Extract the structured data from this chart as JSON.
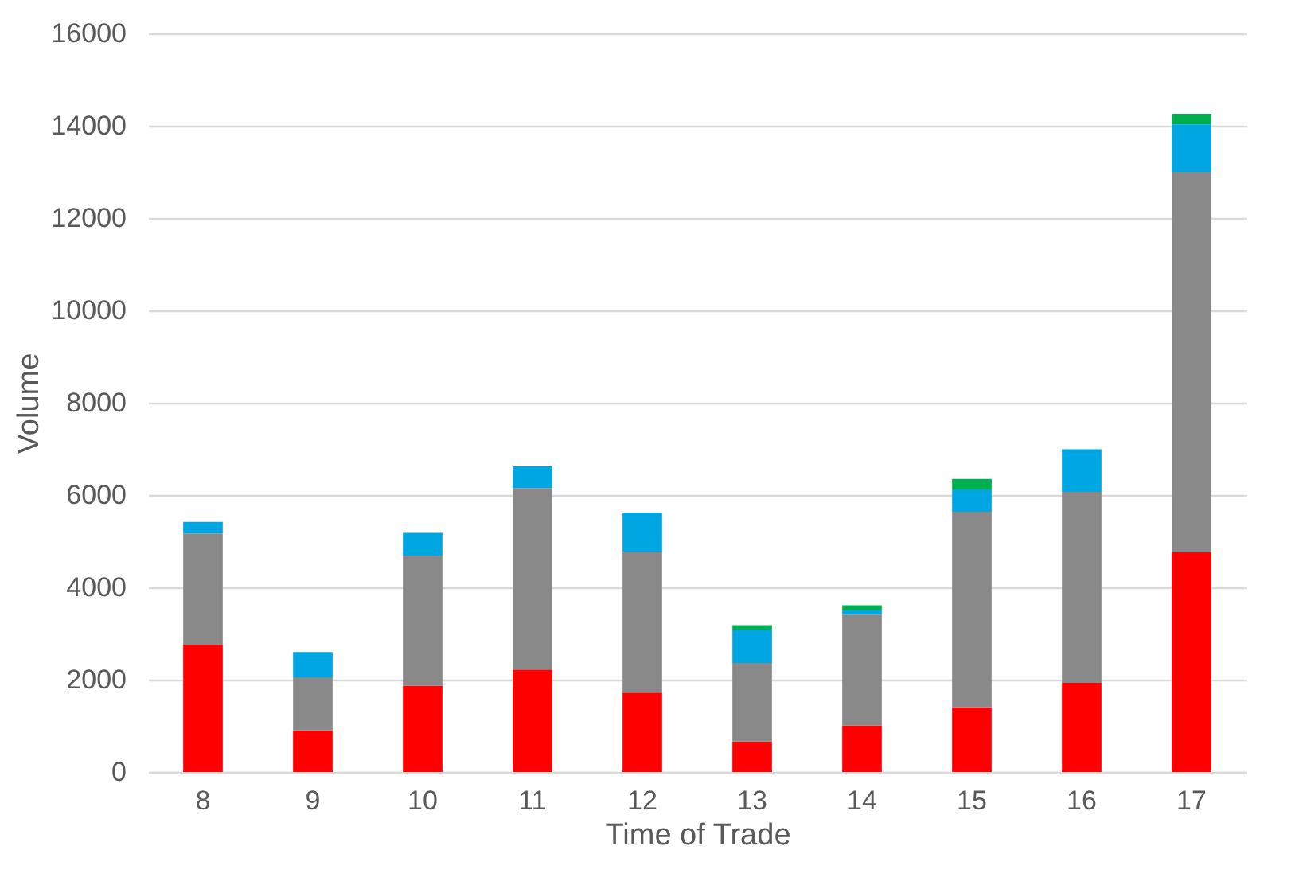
{
  "chart_data": {
    "type": "bar",
    "stacked": true,
    "xlabel": "Time of Trade",
    "ylabel": "Volume",
    "categories": [
      "8",
      "9",
      "10",
      "11",
      "12",
      "13",
      "14",
      "15",
      "16",
      "17"
    ],
    "series": [
      {
        "color": "#ff0000",
        "values": [
          2760,
          900,
          1870,
          2220,
          1720,
          660,
          1010,
          1400,
          1930,
          4760
        ]
      },
      {
        "color": "#898989",
        "values": [
          2410,
          1150,
          2820,
          3930,
          3050,
          1700,
          2400,
          4240,
          4140,
          8240
        ]
      },
      {
        "color": "#00a6e2",
        "values": [
          250,
          550,
          490,
          470,
          850,
          720,
          100,
          480,
          920,
          1030
        ]
      },
      {
        "color": "#00b050",
        "values": [
          null,
          null,
          null,
          null,
          null,
          100,
          100,
          230,
          null,
          230
        ]
      }
    ],
    "ylim": [
      0,
      16000
    ],
    "yticks": [
      0,
      2000,
      4000,
      6000,
      8000,
      10000,
      12000,
      14000,
      16000
    ],
    "grid": "y",
    "legend": false
  }
}
